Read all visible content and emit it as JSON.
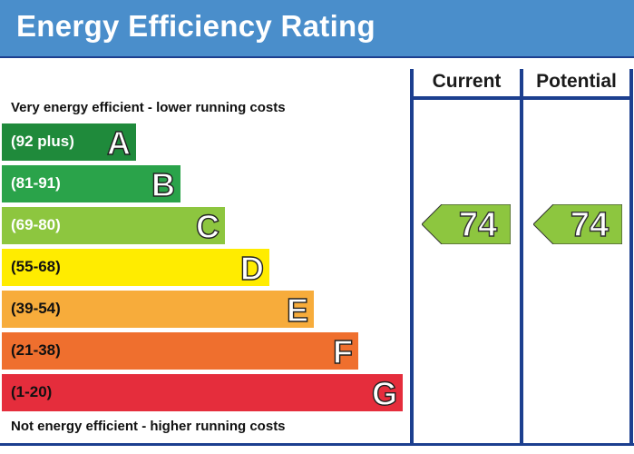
{
  "header": {
    "title": "Energy Efficiency Rating"
  },
  "columns": {
    "current_label": "Current",
    "potential_label": "Potential"
  },
  "captions": {
    "top": "Very energy efficient - lower running costs",
    "bottom": "Not energy efficient - higher running costs"
  },
  "chart_data": {
    "type": "bar",
    "title": "Energy Efficiency Rating",
    "bands": [
      {
        "letter": "A",
        "range": "(92 plus)",
        "color": "#1f8a3b",
        "text_color": "#ffffff"
      },
      {
        "letter": "B",
        "range": "(81-91)",
        "color": "#2aa34a",
        "text_color": "#ffffff"
      },
      {
        "letter": "C",
        "range": "(69-80)",
        "color": "#8dc63f",
        "text_color": "#ffffff"
      },
      {
        "letter": "D",
        "range": "(55-68)",
        "color": "#ffec00",
        "text_color": "#111111"
      },
      {
        "letter": "E",
        "range": "(39-54)",
        "color": "#f7ac3b",
        "text_color": "#111111"
      },
      {
        "letter": "F",
        "range": "(21-38)",
        "color": "#ef6f2e",
        "text_color": "#111111"
      },
      {
        "letter": "G",
        "range": "(1-20)",
        "color": "#e52d3c",
        "text_color": "#111111"
      }
    ],
    "current": {
      "value": "74",
      "band": "C"
    },
    "potential": {
      "value": "74",
      "band": "C"
    }
  },
  "colors": {
    "frame": "#1c3f8f",
    "header": "#4a8ecb"
  }
}
